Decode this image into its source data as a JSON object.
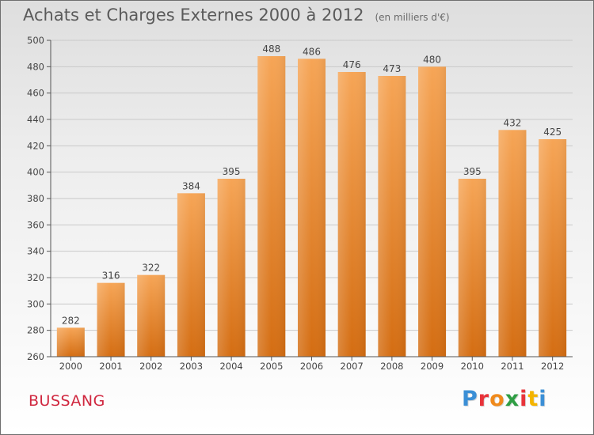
{
  "title": "Achats et Charges Externes 2000 à 2012",
  "subtitle": "(en milliers d'€)",
  "commune": "BUSSANG",
  "brand": {
    "text": "Proxiti",
    "letter_colors": [
      "#3b8fd6",
      "#e8333a",
      "#f08a1c",
      "#2f9e44",
      "#e8333a",
      "#f4b400",
      "#3b8fd6"
    ]
  },
  "colors": {
    "bar_light": "#f6a556",
    "bar_dark": "#d46d12",
    "axis": "#555555",
    "grid": "#c9c9c9"
  },
  "chart_data": {
    "type": "bar",
    "title": "Achats et Charges Externes 2000 à 2012",
    "subtitle": "(en milliers d'€)",
    "categories": [
      "2000",
      "2001",
      "2002",
      "2003",
      "2004",
      "2005",
      "2006",
      "2007",
      "2008",
      "2009",
      "2010",
      "2011",
      "2012"
    ],
    "values": [
      282,
      316,
      322,
      384,
      395,
      488,
      486,
      476,
      473,
      480,
      395,
      432,
      425
    ],
    "ylim": [
      260,
      500
    ],
    "yticks": [
      260,
      280,
      300,
      320,
      340,
      360,
      380,
      400,
      420,
      440,
      460,
      480,
      500
    ],
    "grid": true,
    "legend": "none"
  }
}
